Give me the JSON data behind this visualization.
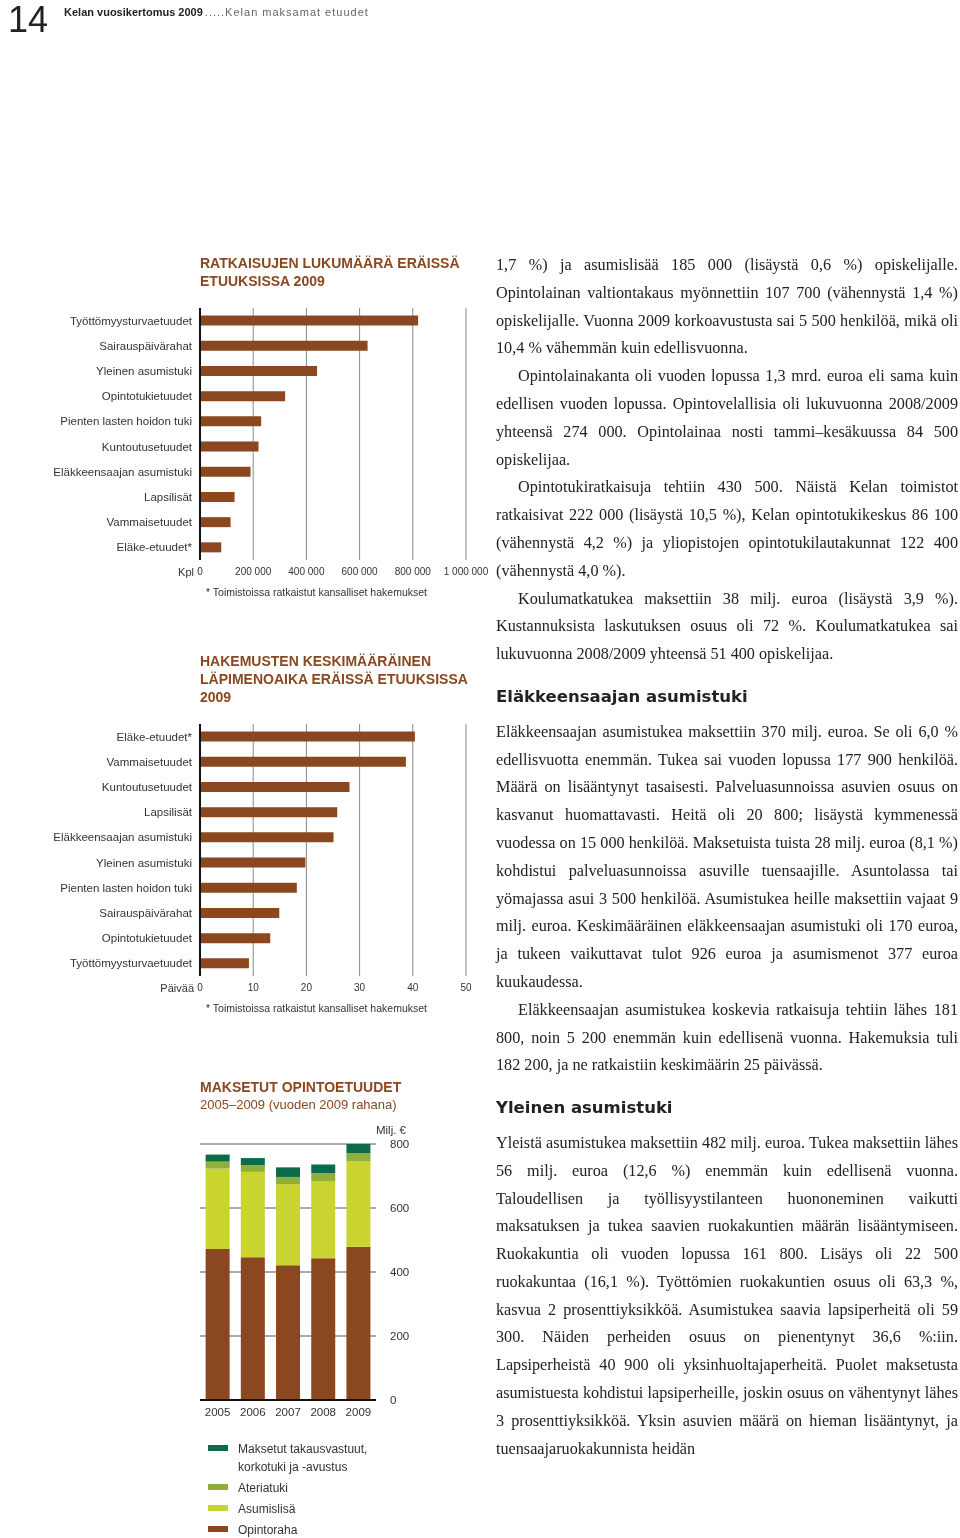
{
  "chart_data": [
    {
      "type": "other",
      "annotations": [
        "14",
        "Kelan vuosikertomus 2009",
        ".....Kelan maksamat etuudet"
      ]
    },
    {
      "type": "bar",
      "orientation": "horizontal",
      "title": "RATKAISUJEN LUKUMÄÄRÄ ERÄISSÄ ETUUKSISSA 2009",
      "xlabel": "Kpl",
      "categories": [
        "Työttömyysturvaetuudet",
        "Sairauspäivärahat",
        "Yleinen asumistuki",
        "Opintotukietuudet",
        "Pienten lasten hoidon tuki",
        "Kuntoutusetuudet",
        "Eläkkeensaajan asumistuki",
        "Lapsilisät",
        "Vammaisetuudet",
        "Eläke-etuudet*"
      ],
      "values": [
        820000,
        630000,
        440000,
        320000,
        230000,
        220000,
        190000,
        130000,
        115000,
        80000
      ],
      "color": "#8b4720",
      "xlim": [
        0,
        1000000
      ],
      "xticks": [
        0,
        {
          "value": 200000,
          "label": "200 000"
        },
        {
          "value": 400000,
          "label": "400 000"
        },
        {
          "value": 600000,
          "label": "600 000"
        },
        {
          "value": 800000,
          "label": "800 000"
        },
        {
          "value": 1000000,
          "label": "1 000 000"
        }
      ],
      "grid": "x",
      "annotations": [
        "* Toimistoissa ratkaistut kansalliset hakemukset"
      ]
    },
    {
      "type": "bar",
      "orientation": "horizontal",
      "title": "HAKEMUSTEN KESKIMÄÄRÄINEN LÄPIMENOAIKA ERÄISSÄ ETUUKSISSA 2009",
      "xlabel": "Päivää",
      "categories": [
        "Eläke-etuudet*",
        "Vammaisetuudet",
        "Kuntoutusetuudet",
        "Lapsilisät",
        "Eläkkeensaajan asumistuki",
        "Yleinen asumistuki",
        "Pienten lasten hoidon tuki",
        "Sairauspäivärahat",
        "Opintotukietuudet",
        "Työttömyysturvaetuudet"
      ],
      "values": [
        40.4,
        38.7,
        28.1,
        25.8,
        25.1,
        19.8,
        18.2,
        14.9,
        13.2,
        9.2
      ],
      "color": "#8b4720",
      "xlim": [
        0,
        50
      ],
      "xticks": [
        0,
        10,
        20,
        30,
        40,
        50
      ],
      "grid": "x",
      "annotations": [
        "* Toimistoissa ratkaistut kansalliset hakemukset"
      ]
    },
    {
      "type": "bar",
      "stacked": true,
      "title": "MAKSETUT OPINTOETUUDET",
      "subtitle": "2005–2009 (vuoden 2009 rahana)",
      "ylabel": "Milj. €",
      "categories": [
        "2005",
        "2006",
        "2007",
        "2008",
        "2009"
      ],
      "series": [
        {
          "name": "Opintoraha",
          "color": "#8b4720",
          "values": [
            472,
            446,
            421,
            443,
            479
          ]
        },
        {
          "name": "Asumislisä",
          "color": "#c9d431",
          "values": [
            251,
            267,
            253,
            241,
            267
          ]
        },
        {
          "name": "Ateriatuki",
          "color": "#8fae3c",
          "values": [
            22,
            21,
            23,
            25,
            25
          ]
        },
        {
          "name": "Maksetut takausvastuut, korkotuki ja -avustus",
          "color": "#0e6b4a",
          "values": [
            22,
            22,
            30,
            27,
            29
          ]
        }
      ],
      "ylim": [
        0,
        800
      ],
      "yticks": [
        0,
        200,
        400,
        600,
        800
      ],
      "grid": "y",
      "legend": "bottom"
    },
    {
      "type": "other",
      "annotations": [
        "1,7 %) ja asumislisää 185 000 (lisäystä 0,6 %) opiskelijalle. Opintolainan valtiontakaus myönnettiin 107 700 (vähennystä 1,4 %) opiskelijalle. Vuonna 2009 korkoavustusta sai 5 500 henkilöä, mikä oli 10,4 % vähemmän kuin edellisvuonna.",
        "Opintolainakanta oli vuoden lopussa 1,3 mrd. euroa eli sama kuin edellisen vuoden lopussa. Opintovelallisia oli lukuvuonna 2008/2009 yhteensä 274 000. Opintolainaa nosti tammi–kesäkuussa 84 500 opiskelijaa.",
        "Opintotukiratkaisuja tehtiin 430 500. Näistä Kelan toimistot ratkaisivat 222 000 (lisäystä 10,5 %), Kelan opintotukikeskus 86 100 (vähennystä 4,2 %) ja yliopistojen opintotukilautakunnat 122 400 (vähennystä 4,0 %).",
        "Koulumatkatukea maksettiin 38 milj. euroa (lisäystä 3,9 %). Kustannuksista laskutuksen osuus oli 72 %. Koulumatkatukea sai lukuvuonna 2008/2009 yhteensä 51 400 opiskelijaa."
      ]
    },
    {
      "type": "other",
      "title": "Eläkkeensaajan asumistuki",
      "annotations": [
        "Eläkkeensaajan asumistukea maksettiin 370 milj. euroa. Se oli 6,0 % edellisvuotta enemmän. Tukea sai vuoden lopussa 177 900 henkilöä. Määrä on lisääntynyt tasaisesti. Palveluasunnoissa asuvien osuus on kasvanut huomattavasti. Heitä oli 20 800; lisäystä kymmenessä vuodessa on 15 000 henkilöä. Maksetuista tuista 28 milj. euroa (8,1 %) kohdistui palveluasunnoissa asuville tuensaajille. Asuntolassa tai yömajassa asui 3 500 henkilöä. Asumistukea heille maksettiin vajaat 9 milj. euroa. Keskimääräinen eläkkeensaajan asumistuki oli 170 euroa, ja tukeen vaikuttavat tulot 926 euroa ja asumismenot 377 euroa kuukaudessa.",
        "Eläkkeensaajan asumistukea koskevia ratkaisuja tehtiin lähes 181 800, noin 5 200 enemmän kuin edellisenä vuonna. Hakemuksia tuli 182 200, ja ne ratkaistiin keskimäärin 25 päivässä."
      ]
    },
    {
      "type": "other",
      "title": "Yleinen asumistuki",
      "annotations": [
        "Yleistä asumistukea maksettiin 482 milj. euroa. Tukea maksettiin lähes 56 milj. euroa (12,6 %) enemmän kuin edellisenä vuonna. Taloudellisen ja työllisyystilanteen huononeminen vaikutti maksatuksen ja tukea saavien ruokakuntien määrän lisääntymiseen. Ruokakuntia oli vuoden lopussa 161 800. Lisäys oli 22 500 ruokakuntaa (16,1 %). Työttömien ruokakuntien osuus oli 63,3 %, kasvua 2 prosenttiyksikköä. Asumistukea saavia lapsiperheitä oli 59 300. Näiden perheiden osuus on pienentynyt 36,6 %:iin. Lapsiperheistä 40 900 oli yksinhuoltajaperheitä. Puolet maksetusta asumistuesta kohdistui lapsiperheille, joskin osuus on vähentynyt lähes 3 prosenttiyksikköä. Yksin asuvien määrä on hieman lisääntynyt, ja tuensaajaruokakunnista heidän"
      ]
    }
  ]
}
